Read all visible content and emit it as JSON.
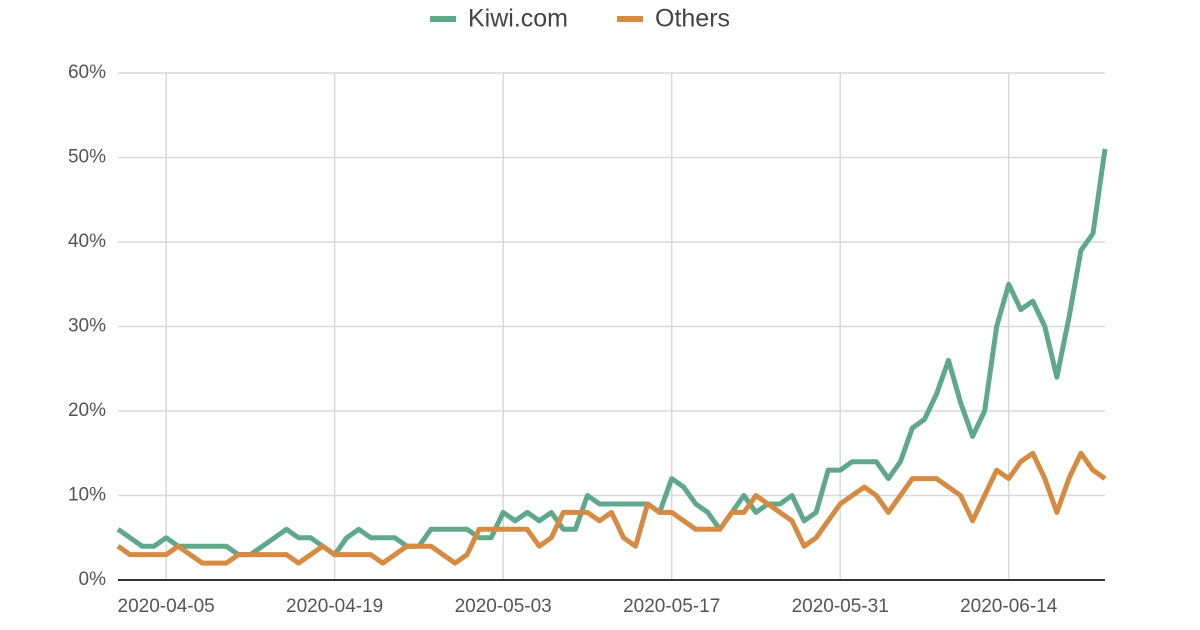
{
  "chart_data": {
    "type": "line",
    "x": [
      "2020-04-01",
      "2020-04-02",
      "2020-04-03",
      "2020-04-04",
      "2020-04-05",
      "2020-04-06",
      "2020-04-07",
      "2020-04-08",
      "2020-04-09",
      "2020-04-10",
      "2020-04-11",
      "2020-04-12",
      "2020-04-13",
      "2020-04-14",
      "2020-04-15",
      "2020-04-16",
      "2020-04-17",
      "2020-04-18",
      "2020-04-19",
      "2020-04-20",
      "2020-04-21",
      "2020-04-22",
      "2020-04-23",
      "2020-04-24",
      "2020-04-25",
      "2020-04-26",
      "2020-04-27",
      "2020-04-28",
      "2020-04-29",
      "2020-04-30",
      "2020-05-01",
      "2020-05-02",
      "2020-05-03",
      "2020-05-04",
      "2020-05-05",
      "2020-05-06",
      "2020-05-07",
      "2020-05-08",
      "2020-05-09",
      "2020-05-10",
      "2020-05-11",
      "2020-05-12",
      "2020-05-13",
      "2020-05-14",
      "2020-05-15",
      "2020-05-16",
      "2020-05-17",
      "2020-05-18",
      "2020-05-19",
      "2020-05-20",
      "2020-05-21",
      "2020-05-22",
      "2020-05-23",
      "2020-05-24",
      "2020-05-25",
      "2020-05-26",
      "2020-05-27",
      "2020-05-28",
      "2020-05-29",
      "2020-05-30",
      "2020-05-31",
      "2020-06-01",
      "2020-06-02",
      "2020-06-03",
      "2020-06-04",
      "2020-06-05",
      "2020-06-06",
      "2020-06-07",
      "2020-06-08",
      "2020-06-09",
      "2020-06-10",
      "2020-06-11",
      "2020-06-12",
      "2020-06-13",
      "2020-06-14",
      "2020-06-15",
      "2020-06-16",
      "2020-06-17",
      "2020-06-18",
      "2020-06-19",
      "2020-06-20",
      "2020-06-21",
      "2020-06-22"
    ],
    "series": [
      {
        "name": "Kiwi.com",
        "color": "#5fa88c",
        "values": [
          6,
          5,
          4,
          4,
          5,
          4,
          4,
          4,
          4,
          4,
          3,
          3,
          4,
          5,
          6,
          5,
          5,
          4,
          3,
          5,
          6,
          5,
          5,
          5,
          4,
          4,
          6,
          6,
          6,
          6,
          5,
          5,
          8,
          7,
          8,
          7,
          8,
          6,
          6,
          10,
          9,
          9,
          9,
          9,
          9,
          8,
          12,
          11,
          9,
          8,
          6,
          8,
          10,
          8,
          9,
          9,
          10,
          7,
          8,
          13,
          13,
          14,
          14,
          14,
          12,
          14,
          18,
          19,
          22,
          26,
          21,
          17,
          20,
          30,
          35,
          32,
          33,
          30,
          24,
          31,
          39,
          41,
          51
        ]
      },
      {
        "name": "Others",
        "color": "#d68a42",
        "values": [
          4,
          3,
          3,
          3,
          3,
          4,
          3,
          2,
          2,
          2,
          3,
          3,
          3,
          3,
          3,
          2,
          3,
          4,
          3,
          3,
          3,
          3,
          2,
          3,
          4,
          4,
          4,
          3,
          2,
          3,
          6,
          6,
          6,
          6,
          6,
          4,
          5,
          8,
          8,
          8,
          7,
          8,
          5,
          4,
          9,
          8,
          8,
          7,
          6,
          6,
          6,
          8,
          8,
          10,
          9,
          8,
          7,
          4,
          5,
          7,
          9,
          10,
          11,
          10,
          8,
          10,
          12,
          12,
          12,
          11,
          10,
          7,
          10,
          13,
          12,
          14,
          15,
          12,
          8,
          12,
          15,
          13,
          12
        ]
      }
    ],
    "xlim": [
      "2020-04-01",
      "2020-06-22"
    ],
    "xticks": [
      "2020-04-05",
      "2020-04-19",
      "2020-05-03",
      "2020-05-17",
      "2020-05-31",
      "2020-06-14"
    ],
    "ylim": [
      0,
      60
    ],
    "yticks": [
      {
        "value": 0,
        "label": "0%"
      },
      {
        "value": 10,
        "label": "10%"
      },
      {
        "value": 20,
        "label": "20%"
      },
      {
        "value": 30,
        "label": "30%"
      },
      {
        "value": 40,
        "label": "40%"
      },
      {
        "value": 50,
        "label": "50%"
      },
      {
        "value": 60,
        "label": "60%"
      }
    ],
    "grid": true,
    "legend": "top"
  }
}
